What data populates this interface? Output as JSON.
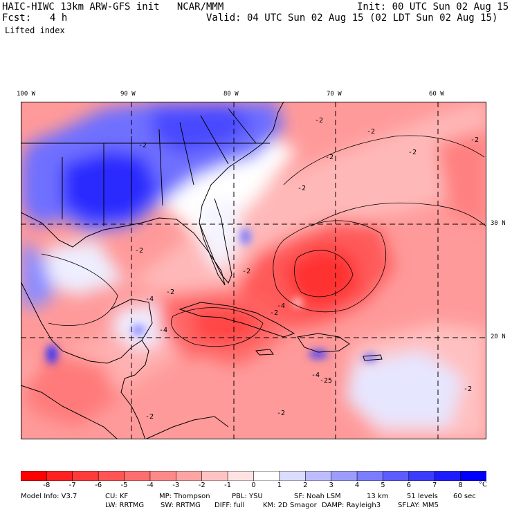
{
  "header": {
    "model_line": "HAIC-HIWC 13km ARW-GFS init   NCAR/MMM",
    "forecast_label": "Fcst:",
    "forecast_value": "4 h",
    "field_name": "Lifted index",
    "init_line": "Init: 00 UTC Sun 02 Aug 15",
    "valid_line": "Valid: 04 UTC Sun 02 Aug 15 (02 LDT Sun 02 Aug 15)"
  },
  "map": {
    "lon_labels": [
      "100 W",
      "90 W",
      "80 W",
      "70 W",
      "60 W"
    ],
    "lat_labels": [
      "30 N",
      "20 N"
    ],
    "contour_labels": [
      "-2",
      "-2",
      "-2",
      "-2",
      "-2",
      "-2",
      "-2",
      "-2",
      "-2",
      "-2",
      "-2",
      "-2",
      "-2",
      "-2",
      "-4",
      "-4",
      "-4",
      "-4",
      "-25"
    ]
  },
  "colorbar": {
    "ticks": [
      "-8",
      "-7",
      "-6",
      "-5",
      "-4",
      "-3",
      "-2",
      "-1",
      "0",
      "1",
      "2",
      "3",
      "4",
      "5",
      "6",
      "7",
      "8"
    ],
    "unit": "°C",
    "colors": [
      "#ff0000",
      "#ff2020",
      "#ff3a3a",
      "#ff5555",
      "#ff6e6e",
      "#ff8888",
      "#ffa3a3",
      "#ffc3c3",
      "#ffe3e3",
      "#ffffff",
      "#dcdcff",
      "#bcbcff",
      "#9c9cff",
      "#7c7cff",
      "#5c5cff",
      "#3c3cff",
      "#1c1cff",
      "#0000ff"
    ]
  },
  "footer": {
    "line1": [
      "Model Info: V3.7",
      "CU: KF",
      "MP: Thompson",
      "PBL: YSU",
      "SF: Noah LSM",
      "13 km",
      "51 levels",
      "60 sec"
    ],
    "line2": [
      "LW: RRTMG",
      "SW: RRTMG",
      "DIFF: full",
      "KM: 2D Smagor",
      "DAMP: Rayleigh3",
      "SFLAY: MM5"
    ]
  }
}
